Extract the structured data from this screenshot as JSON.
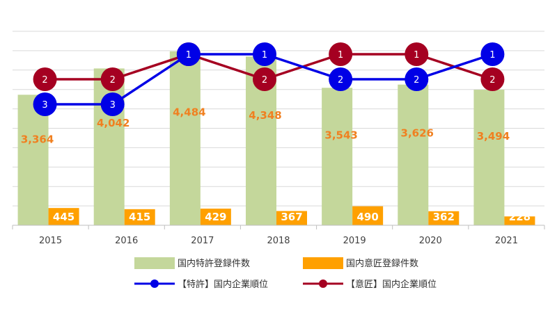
{
  "chart_data": {
    "type": "bar",
    "categories": [
      "2015",
      "2016",
      "2017",
      "2018",
      "2019",
      "2020",
      "2021"
    ],
    "series": [
      {
        "name": "国内特許登録件数",
        "kind": "bar",
        "color": "#c4d79b",
        "values": [
          3364,
          4042,
          4484,
          4348,
          3543,
          3626,
          3494
        ],
        "labels": [
          "3,364",
          "4,042",
          "4,484",
          "4,348",
          "3,543",
          "3,626",
          "3,494"
        ]
      },
      {
        "name": "国内意匠登録件数",
        "kind": "bar",
        "color": "#ffa000",
        "values": [
          445,
          415,
          429,
          367,
          490,
          362,
          228
        ],
        "labels": [
          "445",
          "415",
          "429",
          "367",
          "490",
          "362",
          "228"
        ]
      },
      {
        "name": "【特許】国内企業順位",
        "kind": "line",
        "color": "#0000e6",
        "values": [
          3,
          3,
          1,
          1,
          2,
          2,
          1
        ],
        "labels": [
          "3",
          "3",
          "1",
          "1",
          "2",
          "2",
          "1"
        ]
      },
      {
        "name": "【意匠】国内企業順位",
        "kind": "line",
        "color": "#a50021",
        "values": [
          2,
          2,
          1,
          2,
          1,
          1,
          2
        ],
        "labels": [
          "2",
          "2",
          "1",
          "2",
          "1",
          "1",
          "2"
        ]
      }
    ],
    "ylim": [
      0,
      5000
    ],
    "rank_axis": [
      0.5,
      7
    ],
    "grid": true,
    "legend_position": "bottom"
  }
}
